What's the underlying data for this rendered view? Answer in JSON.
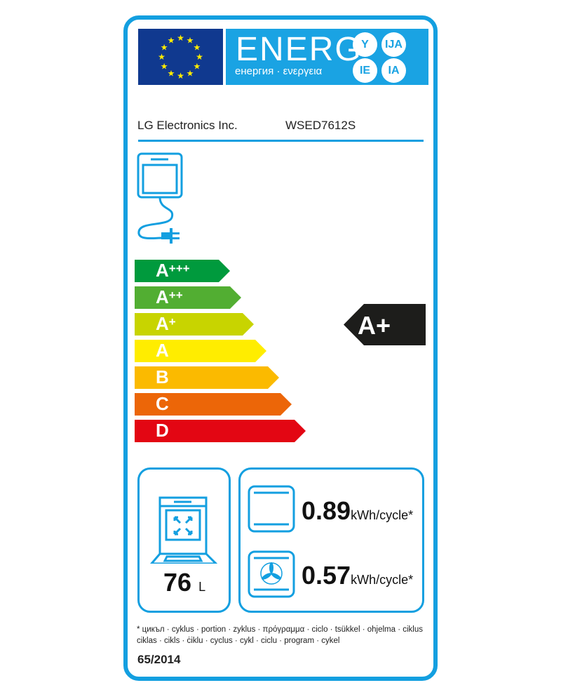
{
  "header": {
    "energy_title": "ENERG",
    "energy_subtitle": "енергия · ενεργεια",
    "language_badges": [
      "Y",
      "IJA",
      "IE",
      "IA"
    ],
    "supplier": "LG Electronics Inc.",
    "model": "WSED7612S"
  },
  "scale": {
    "classes": [
      {
        "label": "A",
        "sup": "+++",
        "color": "#009a3d"
      },
      {
        "label": "A",
        "sup": "++",
        "color": "#52ae32"
      },
      {
        "label": "A",
        "sup": "+",
        "color": "#c8d400"
      },
      {
        "label": "A",
        "sup": "",
        "color": "#ffed00"
      },
      {
        "label": "B",
        "sup": "",
        "color": "#fbba00"
      },
      {
        "label": "C",
        "sup": "",
        "color": "#ec6608"
      },
      {
        "label": "D",
        "sup": "",
        "color": "#e30613"
      }
    ],
    "rated_class": "A+",
    "rated_class_color": "#1d1d1b"
  },
  "volume": {
    "value": "76",
    "unit": "L"
  },
  "consumption": {
    "conventional": {
      "value": "0.89",
      "unit": "kWh/cycle*"
    },
    "fan_forced": {
      "value": "0.57",
      "unit": "kWh/cycle*"
    }
  },
  "footnote": {
    "line1": "* цикъл · cyklus · portion · zyklus · πρόγραμμα · ciclo · tsükkel · ohjelma · ciklus",
    "line2": "ciklas · cikls · ċiklu · cyclus · cykl · ciclu · program · cykel"
  },
  "regulation": "65/2014",
  "colors": {
    "brand_blue": "#139fe0",
    "eu_blue": "#10398f",
    "eu_star": "#ffed00"
  }
}
